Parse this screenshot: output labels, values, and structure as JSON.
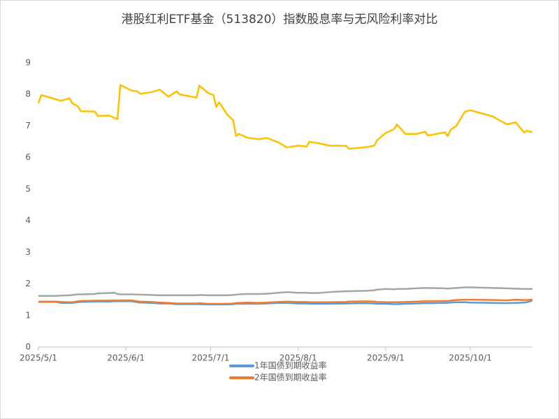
{
  "chart_data": {
    "type": "line",
    "title": "港股红利ETF基金（513820）指数股息率与无风险利率对比",
    "x": [
      "2025-05-01",
      "2025-05-02",
      "2025-05-07",
      "2025-05-09",
      "2025-05-12",
      "2025-05-13",
      "2025-05-15",
      "2025-05-16",
      "2025-05-21",
      "2025-05-22",
      "2025-05-26",
      "2025-05-28",
      "2025-05-29",
      "2025-05-30",
      "2025-06-03",
      "2025-06-05",
      "2025-06-06",
      "2025-06-10",
      "2025-06-13",
      "2025-06-16",
      "2025-06-19",
      "2025-06-20",
      "2025-06-26",
      "2025-06-27",
      "2025-06-30",
      "2025-07-02",
      "2025-07-03",
      "2025-07-04",
      "2025-07-07",
      "2025-07-09",
      "2025-07-10",
      "2025-07-11",
      "2025-07-14",
      "2025-07-18",
      "2025-07-21",
      "2025-07-25",
      "2025-07-28",
      "2025-08-01",
      "2025-08-04",
      "2025-08-05",
      "2025-08-08",
      "2025-08-12",
      "2025-08-18",
      "2025-08-19",
      "2025-08-25",
      "2025-08-28",
      "2025-08-29",
      "2025-09-01",
      "2025-09-04",
      "2025-09-05",
      "2025-09-08",
      "2025-09-12",
      "2025-09-15",
      "2025-09-16",
      "2025-09-22",
      "2025-09-23",
      "2025-09-24",
      "2025-09-26",
      "2025-09-29",
      "2025-10-01",
      "2025-10-09",
      "2025-10-14",
      "2025-10-17",
      "2025-10-20",
      "2025-10-21",
      "2025-10-23"
    ],
    "series": [
      {
        "color": "#ffc000",
        "values": [
          7.72,
          7.98,
          7.85,
          7.8,
          7.88,
          7.72,
          7.62,
          7.47,
          7.46,
          7.32,
          7.33,
          7.25,
          7.22,
          8.3,
          8.12,
          8.1,
          8.02,
          8.07,
          8.15,
          7.93,
          8.1,
          8.0,
          7.9,
          8.28,
          8.05,
          7.98,
          7.6,
          7.75,
          7.35,
          7.18,
          6.68,
          6.75,
          6.63,
          6.58,
          6.62,
          6.48,
          6.32,
          6.38,
          6.35,
          6.5,
          6.46,
          6.38,
          6.37,
          6.28,
          6.33,
          6.38,
          6.55,
          6.78,
          6.9,
          7.05,
          6.75,
          6.75,
          6.82,
          6.7,
          6.8,
          6.68,
          6.88,
          7.0,
          7.45,
          7.5,
          7.3,
          7.05,
          7.12,
          6.8,
          6.85,
          6.8
        ]
      },
      {
        "color": "#a5a5a5",
        "values": [
          1.62,
          1.62,
          1.62,
          1.63,
          1.64,
          1.65,
          1.67,
          1.67,
          1.68,
          1.7,
          1.71,
          1.72,
          1.68,
          1.67,
          1.67,
          1.66,
          1.66,
          1.65,
          1.64,
          1.64,
          1.64,
          1.64,
          1.64,
          1.65,
          1.64,
          1.64,
          1.64,
          1.64,
          1.64,
          1.65,
          1.66,
          1.67,
          1.68,
          1.68,
          1.69,
          1.72,
          1.74,
          1.72,
          1.72,
          1.71,
          1.71,
          1.74,
          1.77,
          1.77,
          1.78,
          1.8,
          1.82,
          1.84,
          1.83,
          1.84,
          1.84,
          1.86,
          1.87,
          1.87,
          1.86,
          1.85,
          1.86,
          1.87,
          1.89,
          1.89,
          1.87,
          1.86,
          1.85,
          1.84,
          1.84,
          1.84
        ]
      },
      {
        "name": "1年国债到期收益率",
        "color": "#5b9bd5",
        "values": [
          1.43,
          1.43,
          1.43,
          1.4,
          1.4,
          1.4,
          1.42,
          1.43,
          1.44,
          1.44,
          1.44,
          1.45,
          1.45,
          1.45,
          1.45,
          1.42,
          1.41,
          1.4,
          1.38,
          1.38,
          1.36,
          1.36,
          1.36,
          1.36,
          1.35,
          1.35,
          1.35,
          1.35,
          1.35,
          1.36,
          1.37,
          1.37,
          1.37,
          1.37,
          1.38,
          1.4,
          1.4,
          1.38,
          1.38,
          1.37,
          1.37,
          1.37,
          1.38,
          1.38,
          1.39,
          1.38,
          1.37,
          1.37,
          1.36,
          1.36,
          1.37,
          1.38,
          1.39,
          1.39,
          1.4,
          1.4,
          1.41,
          1.42,
          1.42,
          1.41,
          1.4,
          1.39,
          1.4,
          1.41,
          1.42,
          1.47
        ]
      },
      {
        "name": "2年国债到期收益率",
        "color": "#ed7d31",
        "values": [
          1.44,
          1.44,
          1.44,
          1.43,
          1.42,
          1.42,
          1.45,
          1.46,
          1.47,
          1.47,
          1.47,
          1.48,
          1.47,
          1.48,
          1.48,
          1.45,
          1.44,
          1.43,
          1.41,
          1.4,
          1.38,
          1.38,
          1.38,
          1.39,
          1.37,
          1.37,
          1.37,
          1.37,
          1.37,
          1.38,
          1.39,
          1.4,
          1.41,
          1.4,
          1.41,
          1.43,
          1.44,
          1.43,
          1.43,
          1.42,
          1.42,
          1.42,
          1.43,
          1.44,
          1.45,
          1.44,
          1.43,
          1.42,
          1.42,
          1.42,
          1.43,
          1.44,
          1.45,
          1.45,
          1.46,
          1.46,
          1.47,
          1.49,
          1.5,
          1.5,
          1.49,
          1.48,
          1.5,
          1.49,
          1.49,
          1.5
        ]
      }
    ],
    "xlim": [
      "2025-05-01",
      "2025-10-23"
    ],
    "xticks": [
      {
        "value": "2025-05-01",
        "label": "2025/5/1"
      },
      {
        "value": "2025-06-01",
        "label": "2025/6/1"
      },
      {
        "value": "2025-07-01",
        "label": "2025/7/1"
      },
      {
        "value": "2025-08-01",
        "label": "2025/8/1"
      },
      {
        "value": "2025-09-01",
        "label": "2025/9/1"
      },
      {
        "value": "2025-10-01",
        "label": "2025/10/1"
      }
    ],
    "ylim": [
      0,
      9
    ],
    "yticks": [
      0,
      1,
      2,
      3,
      4,
      5,
      6,
      7,
      8,
      9
    ],
    "grid": false,
    "legend": "bottom"
  }
}
